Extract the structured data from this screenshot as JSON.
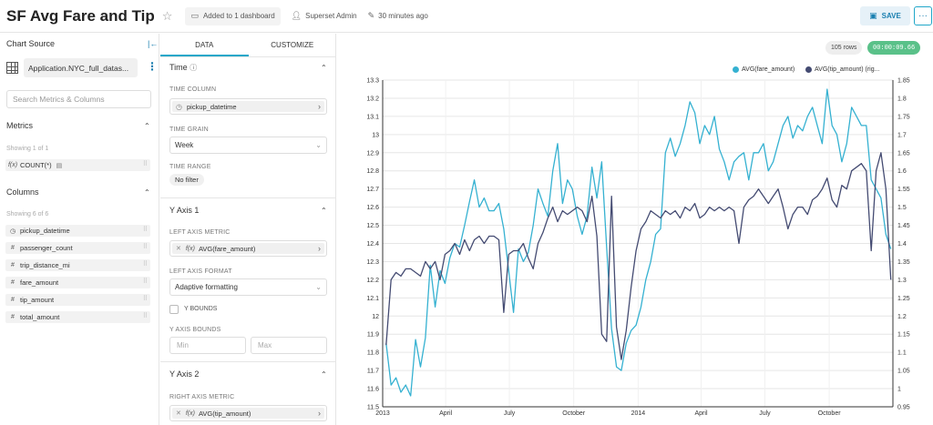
{
  "header": {
    "title": "SF Avg Fare and Tip",
    "dashboards": "Added to 1 dashboard",
    "owner": "Superset Admin",
    "modified": "30 minutes ago",
    "save_label": "SAVE",
    "more_label": "···"
  },
  "datasource": {
    "section_title": "Chart Source",
    "dataset_name": "Application.NYC_full_datas...",
    "search_placeholder": "Search Metrics & Columns",
    "metrics_title": "Metrics",
    "metrics_showing": "Showing 1 of 1",
    "metrics": [
      {
        "type": "f(x)",
        "name": "COUNT(*)"
      }
    ],
    "columns_title": "Columns",
    "columns_showing": "Showing 6 of 6",
    "columns": [
      {
        "type": "⏱",
        "name": "pickup_datetime"
      },
      {
        "type": "#",
        "name": "passenger_count"
      },
      {
        "type": "#",
        "name": "trip_distance_mi"
      },
      {
        "type": "#",
        "name": "fare_amount"
      },
      {
        "type": "#",
        "name": "tip_amount"
      },
      {
        "type": "#",
        "name": "total_amount"
      }
    ]
  },
  "control_panel": {
    "tabs": [
      "DATA",
      "CUSTOMIZE"
    ],
    "time_section": "Time",
    "time_column_label": "TIME COLUMN",
    "time_column_value": "pickup_datetime",
    "time_grain_label": "TIME GRAIN",
    "time_grain_value": "Week",
    "time_range_label": "TIME RANGE",
    "time_range_value": "No filter",
    "y_axis_1_section": "Y Axis 1",
    "left_metric_label": "LEFT AXIS METRIC",
    "left_metric_value": "AVG(fare_amount)",
    "left_format_label": "LEFT AXIS FORMAT",
    "left_format_value": "Adaptive formatting",
    "y_bounds_label": "Y BOUNDS",
    "y_axis_bounds_label": "Y AXIS BOUNDS",
    "min_placeholder": "Min",
    "max_placeholder": "Max",
    "y_axis_2_section": "Y Axis 2",
    "right_metric_label": "RIGHT AXIS METRIC",
    "right_metric_value": "AVG(tip_amount)"
  },
  "chart_panel": {
    "rows": "105 rows",
    "timer": "00:00:09.66"
  },
  "colors": {
    "fare": "#35b1d1",
    "tip": "#444b72",
    "accent": "#20a7c9",
    "success": "#5ac189"
  },
  "chart_data": {
    "type": "line",
    "x": [
      "2013-01-06",
      "2013-01-13",
      "2013-01-20",
      "2013-01-27",
      "2013-02-03",
      "2013-02-10",
      "2013-02-17",
      "2013-02-24",
      "2013-03-03",
      "2013-03-10",
      "2013-03-17",
      "2013-03-24",
      "2013-03-31",
      "2013-04-07",
      "2013-04-14",
      "2013-04-21",
      "2013-04-28",
      "2013-05-05",
      "2013-05-12",
      "2013-05-19",
      "2013-05-26",
      "2013-06-02",
      "2013-06-09",
      "2013-06-16",
      "2013-06-23",
      "2013-06-30",
      "2013-07-07",
      "2013-07-14",
      "2013-07-21",
      "2013-07-28",
      "2013-08-04",
      "2013-08-11",
      "2013-08-18",
      "2013-08-25",
      "2013-09-01",
      "2013-09-08",
      "2013-09-15",
      "2013-09-22",
      "2013-09-29",
      "2013-10-06",
      "2013-10-13",
      "2013-10-20",
      "2013-10-27",
      "2013-11-03",
      "2013-11-10",
      "2013-11-17",
      "2013-11-24",
      "2013-12-01",
      "2013-12-08",
      "2013-12-15",
      "2013-12-22",
      "2013-12-29",
      "2014-01-05",
      "2014-01-12",
      "2014-01-19",
      "2014-01-26",
      "2014-02-02",
      "2014-02-09",
      "2014-02-16",
      "2014-02-23",
      "2014-03-02",
      "2014-03-09",
      "2014-03-16",
      "2014-03-23",
      "2014-03-30",
      "2014-04-06",
      "2014-04-13",
      "2014-04-20",
      "2014-04-27",
      "2014-05-04",
      "2014-05-11",
      "2014-05-18",
      "2014-05-25",
      "2014-06-01",
      "2014-06-08",
      "2014-06-15",
      "2014-06-22",
      "2014-06-29",
      "2014-07-06",
      "2014-07-13",
      "2014-07-20",
      "2014-07-27",
      "2014-08-03",
      "2014-08-10",
      "2014-08-17",
      "2014-08-24",
      "2014-08-31",
      "2014-09-07",
      "2014-09-14",
      "2014-09-21",
      "2014-09-28",
      "2014-10-05",
      "2014-10-12",
      "2014-10-19",
      "2014-10-26",
      "2014-11-02",
      "2014-11-09",
      "2014-11-16",
      "2014-11-23",
      "2014-11-30",
      "2014-12-07",
      "2014-12-14",
      "2014-12-21",
      "2014-12-28"
    ],
    "series": [
      {
        "name": "AVG(fare_amount)",
        "axis": "left",
        "values": [
          11.85,
          11.62,
          11.66,
          11.58,
          11.62,
          11.56,
          11.87,
          11.72,
          11.88,
          12.28,
          12.05,
          12.25,
          12.18,
          12.32,
          12.4,
          12.38,
          12.5,
          12.63,
          12.75,
          12.6,
          12.65,
          12.58,
          12.58,
          12.62,
          12.48,
          12.25,
          12.02,
          12.37,
          12.3,
          12.35,
          12.5,
          12.7,
          12.62,
          12.55,
          12.8,
          12.95,
          12.62,
          12.75,
          12.7,
          12.55,
          12.45,
          12.55,
          12.82,
          12.65,
          12.85,
          12.38,
          11.93,
          11.72,
          11.7,
          11.85,
          11.92,
          11.95,
          12.05,
          12.2,
          12.3,
          12.45,
          12.48,
          12.9,
          12.98,
          12.88,
          12.95,
          13.05,
          13.18,
          13.12,
          12.95,
          13.05,
          13.0,
          13.1,
          12.92,
          12.85,
          12.75,
          12.85,
          12.88,
          12.9,
          12.75,
          12.9,
          12.9,
          12.95,
          12.8,
          12.85,
          12.95,
          13.05,
          13.1,
          12.98,
          13.05,
          13.02,
          13.1,
          13.15,
          13.05,
          12.95,
          13.25,
          13.05,
          13.0,
          12.85,
          12.95,
          13.15,
          13.1,
          13.05,
          13.05,
          12.75,
          12.7,
          12.65,
          12.45,
          12.37
        ]
      },
      {
        "name": "AVG(tip_amount)",
        "axis": "right",
        "values": [
          1.12,
          1.3,
          1.32,
          1.31,
          1.33,
          1.33,
          1.32,
          1.31,
          1.35,
          1.33,
          1.35,
          1.3,
          1.37,
          1.38,
          1.4,
          1.37,
          1.41,
          1.38,
          1.41,
          1.42,
          1.4,
          1.42,
          1.42,
          1.41,
          1.21,
          1.37,
          1.38,
          1.38,
          1.4,
          1.36,
          1.33,
          1.4,
          1.43,
          1.47,
          1.5,
          1.46,
          1.49,
          1.48,
          1.49,
          1.5,
          1.49,
          1.46,
          1.53,
          1.42,
          1.15,
          1.13,
          1.53,
          1.17,
          1.08,
          1.16,
          1.28,
          1.38,
          1.44,
          1.46,
          1.49,
          1.48,
          1.47,
          1.49,
          1.48,
          1.49,
          1.47,
          1.5,
          1.49,
          1.51,
          1.47,
          1.48,
          1.5,
          1.49,
          1.5,
          1.49,
          1.5,
          1.49,
          1.4,
          1.5,
          1.52,
          1.53,
          1.55,
          1.53,
          1.51,
          1.53,
          1.55,
          1.5,
          1.44,
          1.48,
          1.5,
          1.5,
          1.48,
          1.52,
          1.53,
          1.55,
          1.58,
          1.52,
          1.5,
          1.56,
          1.55,
          1.6,
          1.61,
          1.62,
          1.6,
          1.38,
          1.6,
          1.65,
          1.55,
          1.3
        ]
      }
    ],
    "y_left_ticks": [
      "11.5",
      "11.6",
      "11.7",
      "11.8",
      "11.9",
      "12",
      "12.1",
      "12.2",
      "12.3",
      "12.4",
      "12.5",
      "12.6",
      "12.7",
      "12.8",
      "12.9",
      "13",
      "13.1",
      "13.2",
      "13.3"
    ],
    "y_right_ticks": [
      "0.95",
      "1",
      "1.05",
      "1.1",
      "1.15",
      "1.2",
      "1.25",
      "1.3",
      "1.35",
      "1.4",
      "1.45",
      "1.5",
      "1.55",
      "1.6",
      "1.65",
      "1.7",
      "1.75",
      "1.8",
      "1.85"
    ],
    "x_ticks": [
      "2013",
      "April",
      "July",
      "October",
      "2014",
      "April",
      "July",
      "October"
    ],
    "legend": [
      "AVG(fare_amount)",
      "AVG(tip_amount) (rig..."
    ],
    "ylim_left": [
      11.5,
      13.3
    ],
    "ylim_right": [
      0.95,
      1.85
    ],
    "grid": true,
    "legend_position": "top-right"
  }
}
